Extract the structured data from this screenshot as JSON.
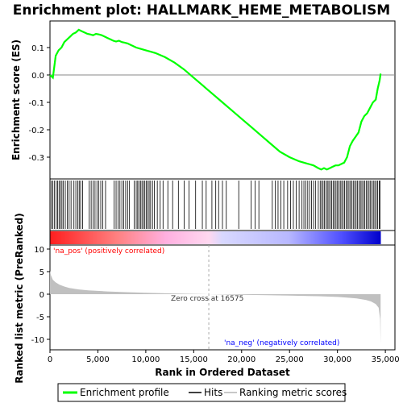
{
  "chart_data": [
    {
      "type": "line",
      "title": "Enrichment plot: HALLMARK_HEME_METABOLISM",
      "ylabel": "Enrichment score (ES)",
      "xlim": [
        0,
        36000
      ],
      "ylim": [
        -0.37,
        0.19
      ],
      "yticks": [
        0.1,
        0.0,
        -0.1,
        -0.2,
        -0.3
      ],
      "ytick_labels": [
        "0.1",
        "0.0",
        "-0.1",
        "-0.2",
        "-0.3"
      ],
      "grid": false,
      "series": [
        {
          "name": "Enrichment profile",
          "color": "#00ff00",
          "x": [
            0,
            300,
            600,
            900,
            1200,
            1500,
            1800,
            2100,
            2400,
            2700,
            3000,
            3300,
            3600,
            3900,
            4200,
            4500,
            4800,
            5100,
            5400,
            5700,
            6000,
            6300,
            6600,
            6900,
            7200,
            7500,
            7800,
            8100,
            8400,
            8700,
            9000,
            9500,
            10000,
            10500,
            11000,
            12000,
            13000,
            14000,
            15000,
            16000,
            17000,
            18000,
            19000,
            20000,
            21000,
            22000,
            23000,
            24000,
            25000,
            26000,
            26500,
            27000,
            27500,
            28000,
            28300,
            28600,
            28900,
            29200,
            29500,
            29800,
            30100,
            30400,
            30700,
            31000,
            31300,
            31600,
            31900,
            32200,
            32500,
            32800,
            33100,
            33400,
            33700,
            34000,
            34200,
            34400,
            34500
          ],
          "y": [
            0.0,
            -0.01,
            0.07,
            0.09,
            0.1,
            0.12,
            0.13,
            0.14,
            0.15,
            0.155,
            0.165,
            0.16,
            0.155,
            0.15,
            0.148,
            0.145,
            0.15,
            0.148,
            0.145,
            0.14,
            0.135,
            0.13,
            0.125,
            0.122,
            0.125,
            0.12,
            0.118,
            0.115,
            0.11,
            0.105,
            0.1,
            0.095,
            0.09,
            0.085,
            0.08,
            0.065,
            0.045,
            0.02,
            -0.01,
            -0.04,
            -0.07,
            -0.1,
            -0.13,
            -0.16,
            -0.19,
            -0.22,
            -0.25,
            -0.28,
            -0.3,
            -0.315,
            -0.32,
            -0.325,
            -0.33,
            -0.34,
            -0.345,
            -0.34,
            -0.345,
            -0.34,
            -0.335,
            -0.33,
            -0.33,
            -0.325,
            -0.32,
            -0.3,
            -0.26,
            -0.24,
            -0.225,
            -0.21,
            -0.17,
            -0.15,
            -0.14,
            -0.12,
            -0.1,
            -0.09,
            -0.05,
            -0.02,
            0.005
          ]
        }
      ]
    },
    {
      "type": "scatter",
      "name": "Hits",
      "color": "#000000",
      "x": [
        150,
        300,
        450,
        650,
        800,
        950,
        1100,
        1250,
        1400,
        1600,
        1800,
        2000,
        2200,
        2500,
        2700,
        2900,
        3050,
        3200,
        3400,
        4100,
        4300,
        4500,
        4700,
        4900,
        5100,
        5300,
        5500,
        5800,
        6700,
        6900,
        7100,
        7300,
        7500,
        7700,
        7900,
        8100,
        8300,
        8800,
        9000,
        9150,
        9300,
        9450,
        9600,
        9750,
        9900,
        10050,
        10200,
        10350,
        10500,
        10700,
        10900,
        11200,
        11500,
        11800,
        12300,
        12800,
        13400,
        14000,
        14500,
        15200,
        15900,
        16300,
        16900,
        17300,
        17600,
        18000,
        18400,
        19700,
        21000,
        21400,
        21800,
        23200,
        23500,
        23800,
        24100,
        24400,
        24800,
        25100,
        25400,
        25700,
        26000,
        26300,
        26500,
        26700,
        26900,
        27100,
        27300,
        27500,
        27700,
        28000,
        28200,
        28350,
        28500,
        28650,
        28800,
        28950,
        29100,
        29250,
        29400,
        29550,
        29700,
        29850,
        30000,
        30150,
        30300,
        30450,
        30600,
        30750,
        30900,
        31050,
        31200,
        31350,
        31500,
        31650,
        31800,
        31950,
        32100,
        32250,
        32400,
        32550,
        32700,
        32850,
        33000,
        33150,
        33300,
        33450,
        33600,
        33750,
        33900,
        34050,
        34200,
        34350,
        34450
      ]
    },
    {
      "type": "area",
      "name": "Ranking metric scores",
      "ylabel": "Ranked list metric (PreRanked)",
      "xlabel": "Rank in Ordered Dataset",
      "xlim": [
        0,
        36000
      ],
      "ylim": [
        -12,
        12
      ],
      "yticks": [
        10,
        5,
        0,
        -5,
        -10
      ],
      "ytick_labels": [
        "10",
        "5",
        "0",
        "-5",
        "-10"
      ],
      "xticks": [
        0,
        5000,
        10000,
        15000,
        20000,
        25000,
        30000,
        35000
      ],
      "xtick_labels": [
        "0",
        "5,000",
        "10,000",
        "15,000",
        "20,000",
        "25,000",
        "30,000",
        "35,000"
      ],
      "x": [
        0,
        100,
        300,
        600,
        1000,
        1500,
        2000,
        3000,
        4000,
        6000,
        8000,
        10000,
        12000,
        14000,
        16575,
        19000,
        22000,
        25000,
        28000,
        30000,
        31000,
        32000,
        33000,
        33500,
        34000,
        34300,
        34450,
        34500
      ],
      "y": [
        5.2,
        4.2,
        3.2,
        2.6,
        2.1,
        1.7,
        1.4,
        1.05,
        0.85,
        0.6,
        0.45,
        0.32,
        0.2,
        0.1,
        0.0,
        -0.1,
        -0.2,
        -0.3,
        -0.45,
        -0.6,
        -0.75,
        -0.95,
        -1.3,
        -1.6,
        -2.2,
        -3.0,
        -5.5,
        -11.0
      ],
      "annotations": {
        "pos_label": "'na_pos' (positively correlated)",
        "neg_label": "'na_neg' (negatively correlated)",
        "zero_cross": "Zero cross at 16575",
        "zero_cross_x": 16575
      }
    }
  ],
  "legend": {
    "items": [
      {
        "label": "Enrichment profile",
        "color": "#00ff00"
      },
      {
        "label": "Hits",
        "color": "#000000"
      },
      {
        "label": "Ranking metric scores",
        "color": "#c8c8c8"
      }
    ]
  },
  "colors": {
    "pos_label": "#ff0000",
    "neg_label": "#0000ff",
    "zero_line": "#aaaaaa",
    "metric_fill": "#c0c0c0",
    "heat_pos": "#ff0000",
    "heat_neg": "#0000ff"
  }
}
